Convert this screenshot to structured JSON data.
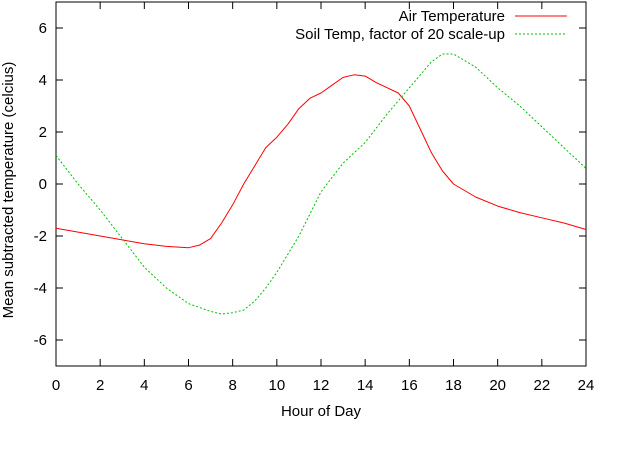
{
  "chart_data": {
    "type": "line",
    "title": "",
    "xlabel": "Hour of Day",
    "ylabel": "Mean subtracted temperature (celcius)",
    "xlim": [
      0,
      24
    ],
    "ylim": [
      -7,
      7
    ],
    "xticks": [
      0,
      2,
      4,
      6,
      8,
      10,
      12,
      14,
      16,
      18,
      20,
      22,
      24
    ],
    "yticks": [
      -6,
      -4,
      -2,
      0,
      2,
      4,
      6
    ],
    "grid": false,
    "legend_position": "top-right",
    "series": [
      {
        "name": "Air Temperature",
        "color": "#ff0000",
        "dash": "solid",
        "x": [
          0,
          1,
          2,
          3,
          4,
          5,
          6,
          6.5,
          7,
          7.5,
          8,
          8.5,
          9,
          9.5,
          10,
          10.5,
          11,
          11.5,
          12,
          12.5,
          13,
          13.5,
          14,
          14.5,
          15,
          15.5,
          16,
          16.5,
          17,
          17.5,
          18,
          19,
          20,
          21,
          22,
          23,
          24
        ],
        "values": [
          -1.7,
          -1.85,
          -2.0,
          -2.15,
          -2.3,
          -2.4,
          -2.45,
          -2.35,
          -2.1,
          -1.5,
          -0.8,
          0.0,
          0.7,
          1.4,
          1.8,
          2.3,
          2.9,
          3.3,
          3.5,
          3.8,
          4.1,
          4.2,
          4.15,
          3.9,
          3.7,
          3.5,
          3.0,
          2.1,
          1.2,
          0.5,
          0.0,
          -0.5,
          -0.85,
          -1.1,
          -1.3,
          -1.5,
          -1.75
        ]
      },
      {
        "name": "Soil Temp, factor of 20 scale-up",
        "color": "#00c000",
        "dash": "dotted",
        "x": [
          0,
          1,
          2,
          3,
          4,
          5,
          6,
          7,
          7.5,
          8,
          8.5,
          9,
          9.5,
          10,
          11,
          12,
          13,
          14,
          15,
          16,
          16.5,
          17,
          17.5,
          18,
          19,
          20,
          21,
          22,
          23,
          24
        ],
        "values": [
          1.1,
          0.0,
          -1.0,
          -2.1,
          -3.2,
          -4.0,
          -4.6,
          -4.9,
          -5.0,
          -4.95,
          -4.85,
          -4.5,
          -4.0,
          -3.4,
          -2.0,
          -0.3,
          0.8,
          1.6,
          2.7,
          3.7,
          4.2,
          4.7,
          5.0,
          5.0,
          4.5,
          3.7,
          3.0,
          2.2,
          1.4,
          0.6
        ]
      }
    ]
  }
}
